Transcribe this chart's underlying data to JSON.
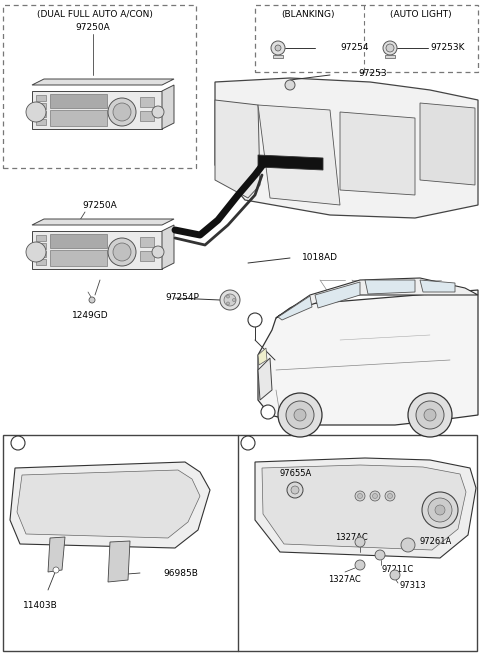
{
  "bg": "#ffffff",
  "parts": {
    "label_top_left": "(DUAL FULL AUTO A/CON)",
    "p97250A": "97250A",
    "label_blanking": "(BLANKING)",
    "p97254": "97254",
    "label_autolight": "(AUTO LIGHT)",
    "p97253K": "97253K",
    "p97253": "97253",
    "p1018AD": "1018AD",
    "p97254P": "97254P",
    "p1249GD": "1249GD",
    "circle_a": "a",
    "circle_b": "b",
    "p11403B": "11403B",
    "p96985B": "96985B",
    "p97655A": "97655A",
    "p1327AC_1": "1327AC",
    "p97261A": "97261A",
    "p97211C": "97211C",
    "p1327AC_2": "1327AC",
    "p97313": "97313"
  },
  "colors": {
    "dash_border": "#777777",
    "solid_border": "#444444",
    "part_fill": "#e8e8e8",
    "part_edge": "#555555",
    "black": "#000000",
    "dark": "#222222",
    "line": "#333333",
    "light_gray": "#f0f0f0",
    "mid_gray": "#cccccc",
    "white": "#ffffff"
  }
}
